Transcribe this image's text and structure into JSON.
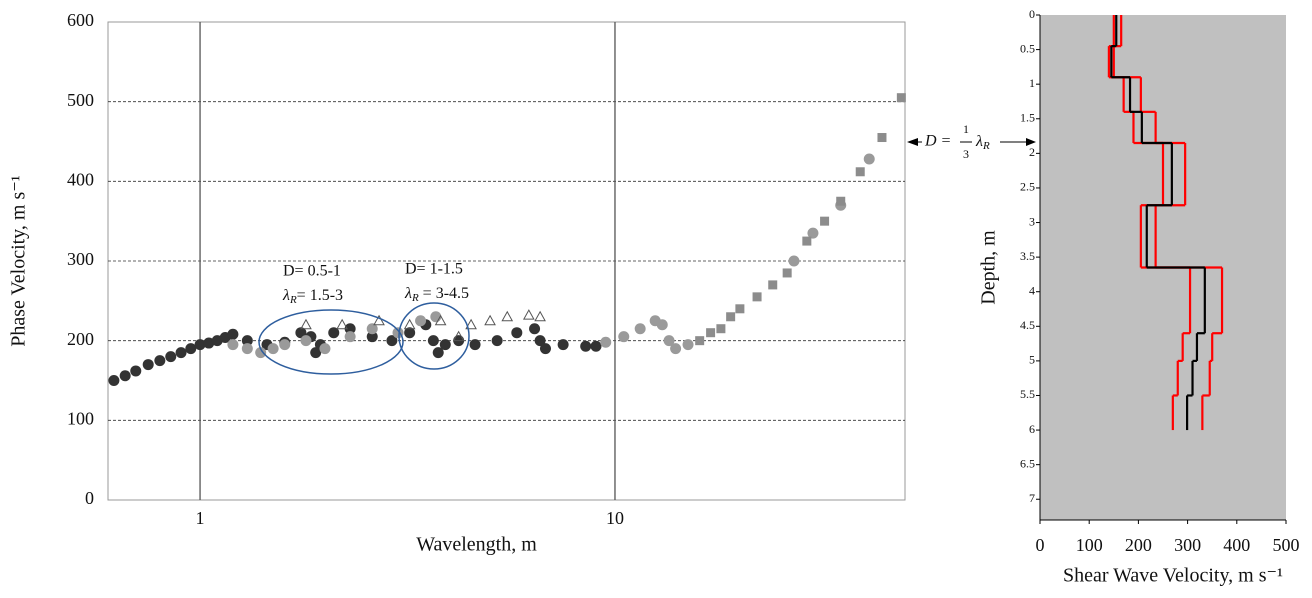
{
  "chart_data": [
    {
      "type": "scatter",
      "xscale": "log",
      "xlabel": "Wavelength, m",
      "ylabel": "Phase Velocity, m s⁻¹",
      "xlim": [
        0.6,
        50
      ],
      "xticks": [
        1,
        10
      ],
      "ylim": [
        0,
        600
      ],
      "yticks": [
        0,
        100,
        200,
        300,
        400,
        500,
        600
      ],
      "grid": true,
      "series": [
        {
          "color": "#333333",
          "marker": "circle",
          "x": [
            0.62,
            0.66,
            0.7,
            0.75,
            0.8,
            0.85,
            0.9,
            0.95,
            1.0,
            1.05,
            1.1,
            1.15,
            1.2,
            1.3,
            1.45,
            1.6,
            1.75,
            1.85,
            1.9,
            1.95,
            2.1,
            2.3,
            2.6,
            2.9,
            3.2,
            3.5,
            3.65,
            3.75,
            3.9,
            4.2,
            4.6,
            5.2,
            5.8,
            6.4,
            6.6,
            6.8,
            7.5,
            8.5,
            9.0
          ],
          "values": [
            150,
            156,
            162,
            170,
            175,
            180,
            185,
            190,
            195,
            197,
            200,
            204,
            208,
            200,
            195,
            198,
            210,
            205,
            185,
            195,
            210,
            215,
            205,
            200,
            210,
            220,
            200,
            185,
            195,
            200,
            195,
            200,
            210,
            215,
            200,
            190,
            195,
            193,
            193
          ]
        },
        {
          "color": "#9a9a9a",
          "marker": "circle",
          "x": [
            1.2,
            1.3,
            1.4,
            1.5,
            1.6,
            1.8,
            2.0,
            2.3,
            2.6,
            3.0,
            3.4,
            3.7,
            9.5,
            10.5,
            11.5,
            12.5,
            13.0,
            13.5,
            14.0,
            15.0,
            27.0,
            30.0,
            35.0,
            41.0
          ],
          "values": [
            195,
            190,
            185,
            190,
            195,
            200,
            190,
            205,
            215,
            210,
            225,
            230,
            198,
            205,
            215,
            225,
            220,
            200,
            190,
            195,
            300,
            335,
            370,
            428
          ]
        },
        {
          "color": "#8c8c8c",
          "marker": "square",
          "x": [
            16.0,
            17.0,
            18.0,
            19.0,
            20.0,
            22.0,
            24.0,
            26.0,
            29.0,
            32.0,
            35.0,
            39.0,
            44.0,
            49.0
          ],
          "values": [
            200,
            210,
            215,
            230,
            240,
            255,
            270,
            285,
            325,
            350,
            375,
            412,
            455,
            505
          ]
        },
        {
          "color": "#555555",
          "marker": "triangle",
          "x": [
            1.8,
            2.2,
            2.7,
            3.2,
            3.8,
            4.2,
            4.5,
            5.0,
            5.5,
            6.2,
            6.6
          ],
          "values": [
            220,
            220,
            225,
            220,
            225,
            205,
            220,
            225,
            230,
            232,
            230
          ]
        }
      ],
      "annotations": [
        {
          "line1": "D= 0.5-1",
          "symbol": "λ",
          "sub": "R",
          "text": "= 1.5-3"
        },
        {
          "line1": "D= 1-1.5",
          "symbol": "λ",
          "sub": "R",
          "text": " = 3-4.5"
        }
      ],
      "depth_note": {
        "lhs": "D =",
        "num": "1",
        "den": "3",
        "symbol": "λ",
        "sub": "R"
      }
    },
    {
      "type": "profile",
      "xlabel": "Shear Wave Velocity, m s⁻¹",
      "ylabel": "Depth, m",
      "xlim": [
        0,
        500
      ],
      "xticks": [
        0,
        100,
        200,
        300,
        400,
        500
      ],
      "ylim": [
        0,
        7.3
      ],
      "yticks": [
        0,
        0.5,
        1,
        1.5,
        2,
        2.5,
        3,
        3.5,
        4,
        4.5,
        5,
        5.5,
        6,
        6.5,
        7
      ],
      "y_inverted": true,
      "background": "#c0c0c0",
      "depths": [
        0,
        0.45,
        0.9,
        1.4,
        1.85,
        2.75,
        3.65,
        4.6,
        5.0,
        5.5,
        6.0
      ],
      "series": [
        {
          "color": "#ff0000",
          "values": [
            150,
            140,
            170,
            190,
            250,
            205,
            305,
            290,
            280,
            270
          ]
        },
        {
          "color": "#ff0000",
          "values": [
            165,
            150,
            205,
            235,
            295,
            235,
            370,
            350,
            345,
            330
          ]
        },
        {
          "color": "#000000",
          "values": [
            155,
            145,
            183,
            207,
            268,
            217,
            335,
            319,
            310,
            299
          ]
        }
      ]
    }
  ]
}
